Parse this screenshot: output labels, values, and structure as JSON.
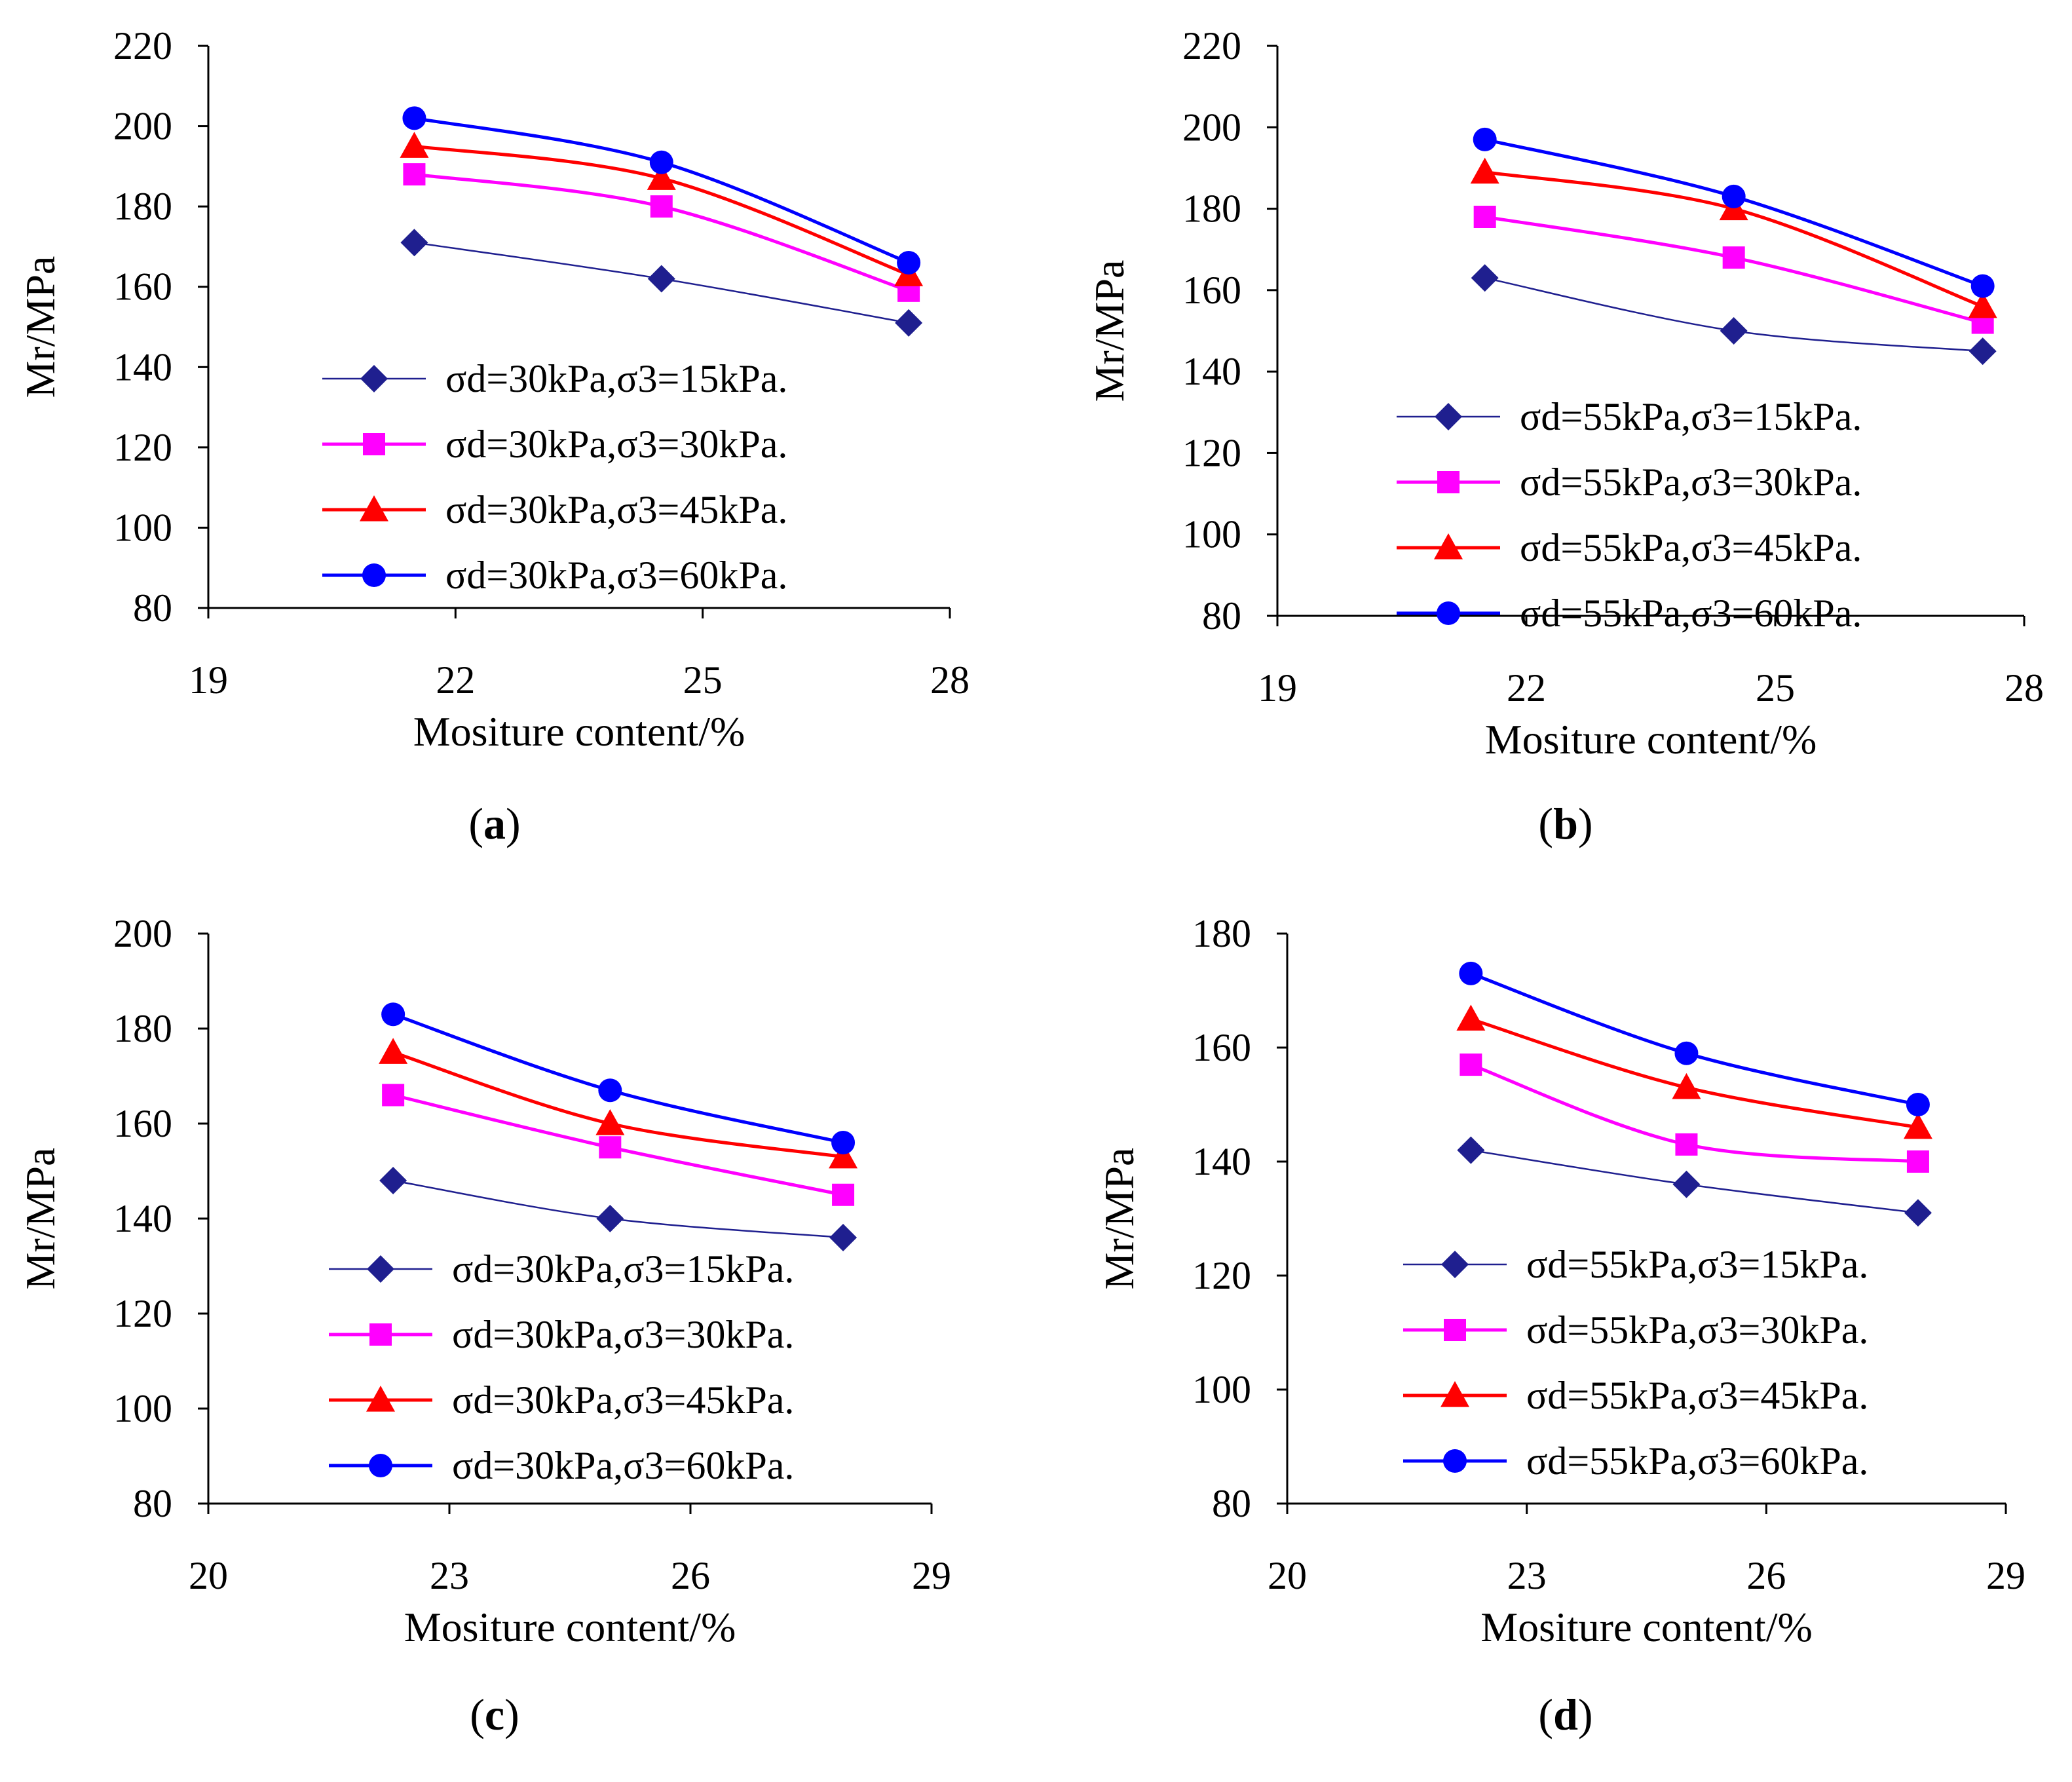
{
  "figure": {
    "colors": {
      "s15": "#1F1F8F",
      "s30": "#FF00FF",
      "s45": "#FF0000",
      "s60": "#0000FF",
      "axis": "#000000"
    },
    "markers": {
      "s15": "diamond",
      "s30": "square",
      "s45": "triangle",
      "s60": "circle"
    }
  },
  "chart_data": [
    {
      "type": "line",
      "panel_label": "a",
      "xlabel": "Mositure content/%",
      "ylabel": "Mr/MPa",
      "xlim": [
        19,
        28
      ],
      "ylim": [
        80,
        220
      ],
      "xticks": [
        19,
        22,
        25,
        28
      ],
      "yticks": [
        80,
        100,
        120,
        140,
        160,
        180,
        200,
        220
      ],
      "x": [
        21.5,
        24.5,
        27.5
      ],
      "series": [
        {
          "key": "s15",
          "name": "σd=30kPa,σ3=15kPa.",
          "values": [
            171,
            162,
            151
          ]
        },
        {
          "key": "s30",
          "name": "σd=30kPa,σ3=30kPa.",
          "values": [
            188,
            180,
            159
          ]
        },
        {
          "key": "s45",
          "name": "σd=30kPa,σ3=45kPa.",
          "values": [
            195,
            187,
            163
          ]
        },
        {
          "key": "s60",
          "name": "σd=30kPa,σ3=60kPa.",
          "values": [
            202,
            191,
            166
          ]
        }
      ]
    },
    {
      "type": "line",
      "panel_label": "b",
      "xlabel": "Mositure content/%",
      "ylabel": "Mr/MPa",
      "xlim": [
        19,
        28
      ],
      "ylim": [
        80,
        220
      ],
      "xticks": [
        19,
        22,
        25,
        28
      ],
      "yticks": [
        80,
        100,
        120,
        140,
        160,
        180,
        200,
        220
      ],
      "x": [
        21.5,
        24.5,
        27.5
      ],
      "series": [
        {
          "key": "s15",
          "name": "σd=55kPa,σ3=15kPa.",
          "values": [
            163,
            150,
            145
          ]
        },
        {
          "key": "s30",
          "name": "σd=55kPa,σ3=30kPa.",
          "values": [
            178,
            168,
            152
          ]
        },
        {
          "key": "s45",
          "name": "σd=55kPa,σ3=45kPa.",
          "values": [
            189,
            180,
            156
          ]
        },
        {
          "key": "s60",
          "name": "σd=55kPa,σ3=60kPa.",
          "values": [
            197,
            183,
            161
          ]
        }
      ]
    },
    {
      "type": "line",
      "panel_label": "c",
      "xlabel": "Mositure content/%",
      "ylabel": "Mr/MPa",
      "xlim": [
        20,
        29
      ],
      "ylim": [
        80,
        200
      ],
      "xticks": [
        20,
        23,
        26,
        29
      ],
      "yticks": [
        80,
        100,
        120,
        140,
        160,
        180,
        200
      ],
      "x": [
        22.3,
        25,
        27.9
      ],
      "series": [
        {
          "key": "s15",
          "name": "σd=30kPa,σ3=15kPa.",
          "values": [
            148,
            140,
            136
          ]
        },
        {
          "key": "s30",
          "name": "σd=30kPa,σ3=30kPa.",
          "values": [
            166,
            155,
            145
          ]
        },
        {
          "key": "s45",
          "name": "σd=30kPa,σ3=45kPa.",
          "values": [
            175,
            160,
            153
          ]
        },
        {
          "key": "s60",
          "name": "σd=30kPa,σ3=60kPa.",
          "values": [
            183,
            167,
            156
          ]
        }
      ]
    },
    {
      "type": "line",
      "panel_label": "d",
      "xlabel": "Mositure content/%",
      "ylabel": "Mr/MPa",
      "xlim": [
        20,
        29
      ],
      "ylim": [
        80,
        180
      ],
      "xticks": [
        20,
        23,
        26,
        29
      ],
      "yticks": [
        80,
        100,
        120,
        140,
        160,
        180
      ],
      "x": [
        22.3,
        25,
        27.9
      ],
      "series": [
        {
          "key": "s15",
          "name": "σd=55kPa,σ3=15kPa.",
          "values": [
            142,
            136,
            131
          ]
        },
        {
          "key": "s30",
          "name": "σd=55kPa,σ3=30kPa.",
          "values": [
            157,
            143,
            140
          ]
        },
        {
          "key": "s45",
          "name": "σd=55kPa,σ3=45kPa.",
          "values": [
            165,
            153,
            146
          ]
        },
        {
          "key": "s60",
          "name": "σd=55kPa,σ3=60kPa.",
          "values": [
            173,
            159,
            150
          ]
        }
      ]
    }
  ]
}
